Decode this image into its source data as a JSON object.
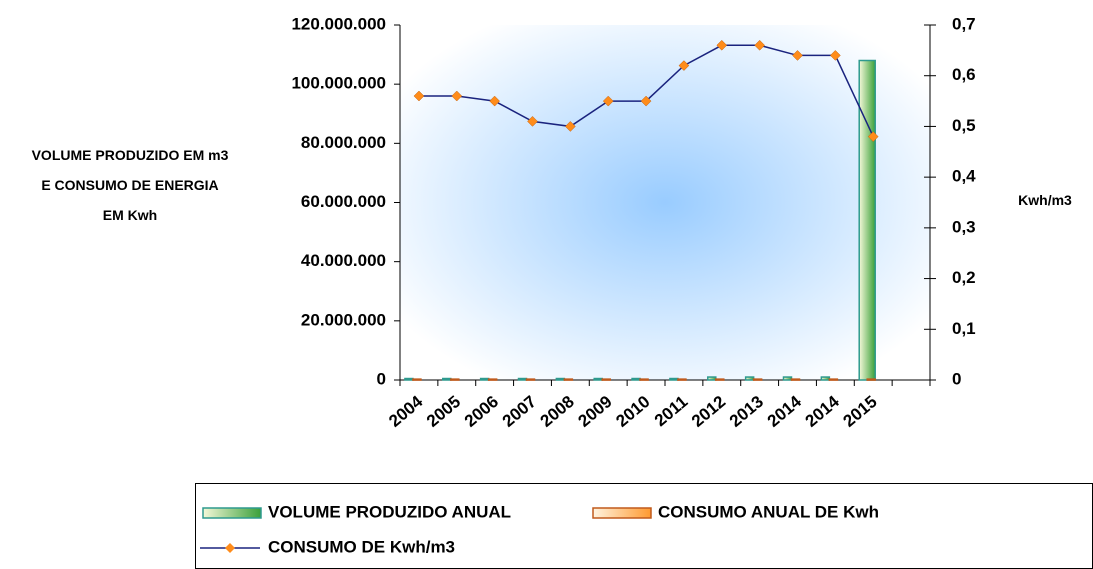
{
  "chart_data": {
    "type": "bar_line",
    "y_label": "VOLUME PRODUZIDO EM m3 E CONSUMO DE ENERGIA EM Kwh",
    "y2_label": "Kwh/m3",
    "categories": [
      "2004",
      "2005",
      "2006",
      "2007",
      "2008",
      "2009",
      "2010",
      "2011",
      "2012",
      "2013",
      "2014",
      "2014",
      "2015",
      null
    ],
    "series": [
      {
        "name": "VOLUME PRODUZIDO ANUAL",
        "type": "bar",
        "color": "#2e9a8e",
        "values": [
          500000,
          500000,
          500000,
          500000,
          500000,
          500000,
          500000,
          500000,
          1000000,
          1000000,
          1000000,
          1000000,
          108000000,
          null
        ]
      },
      {
        "name": "CONSUMO ANUAL DE Kwh",
        "type": "bar",
        "color": "#c05a1c",
        "values": [
          300000,
          300000,
          300000,
          300000,
          300000,
          300000,
          300000,
          300000,
          300000,
          300000,
          300000,
          300000,
          300000,
          null
        ]
      },
      {
        "name": "CONSUMO DE Kwh/m3",
        "type": "line",
        "axis": "y2",
        "color": "#1a237e",
        "marker_color": "#ff8c1a",
        "values": [
          0.56,
          0.56,
          0.55,
          0.51,
          0.5,
          0.55,
          0.55,
          0.62,
          0.66,
          0.66,
          0.64,
          0.64,
          0.48,
          null
        ]
      }
    ],
    "ylim": [
      0,
      120000000
    ],
    "yticks": [
      0,
      {
        "value": 20000000,
        "label": "20.000.000"
      },
      {
        "value": 40000000,
        "label": "40.000.000"
      },
      {
        "value": 60000000,
        "label": "60.000.000"
      },
      {
        "value": 80000000,
        "label": "80.000.000"
      },
      {
        "value": 100000000,
        "label": "100.000.000"
      },
      {
        "value": 120000000,
        "label": "120.000.000"
      }
    ],
    "y2lim": [
      0,
      0.7
    ],
    "y2ticks": [
      0,
      {
        "value": 0.1,
        "label": "0,1"
      },
      {
        "value": 0.2,
        "label": "0,2"
      },
      {
        "value": 0.3,
        "label": "0,3"
      },
      {
        "value": 0.4,
        "label": "0,4"
      },
      {
        "value": 0.5,
        "label": "0,5"
      },
      {
        "value": 0.6,
        "label": "0,6"
      },
      {
        "value": 0.7,
        "label": "0,7"
      }
    ],
    "legend": "bottom"
  }
}
